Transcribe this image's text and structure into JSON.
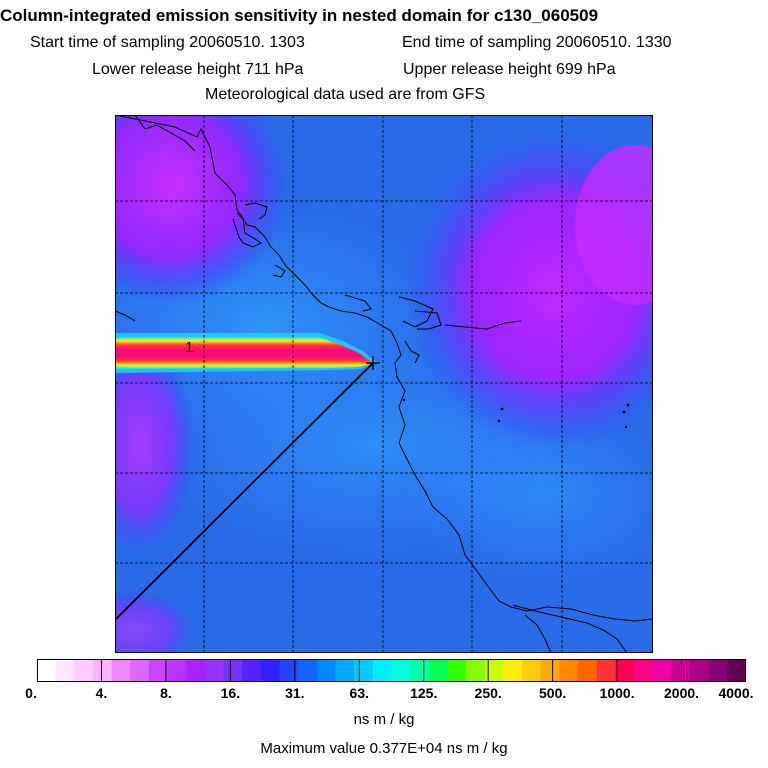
{
  "header": {
    "title": "Column-integrated emission sensitivity in nested domain for c130_060509",
    "start_label": "Start time of sampling 20060510.  1303",
    "end_label": "End time of sampling 20060510.  1330",
    "lower_label": "Lower release height  711 hPa",
    "upper_label": "Upper release height  699 hPa",
    "met_label": "Meteorological data used are from GFS"
  },
  "map": {
    "release_marker": "1",
    "background_color": "#2a6fe6",
    "plume_core_color": "#ff0a7a",
    "plume_edge_color": "#ffe000",
    "purple_color": "#b030ff"
  },
  "colorbar": {
    "colors": [
      "#ffffff",
      "#ffe6ff",
      "#ffccff",
      "#ffb3ff",
      "#ee88ff",
      "#dd66ff",
      "#cc44ff",
      "#b833ff",
      "#a622ff",
      "#9933ff",
      "#7733ff",
      "#5522ff",
      "#3322ff",
      "#2244ff",
      "#1166ff",
      "#0088ff",
      "#00aaff",
      "#00ccff",
      "#00eeff",
      "#00ffdd",
      "#00ffaa",
      "#00ff55",
      "#33ff00",
      "#88ff00",
      "#ccff00",
      "#ffee00",
      "#ffcc00",
      "#ffaa00",
      "#ff8800",
      "#ff6600",
      "#ff3333",
      "#ff0055",
      "#ff0088",
      "#ee00aa",
      "#cc0099",
      "#aa0088",
      "#880077",
      "#660055"
    ],
    "tick_labels": [
      "0.",
      "4.",
      "8.",
      "16.",
      "31.",
      "63.",
      "125.",
      "250.",
      "500.",
      "1000.",
      "2000.",
      "4000."
    ],
    "units": "ns m / kg"
  },
  "footer": {
    "max_label": "Maximum value  0.377E+04 ns m / kg"
  }
}
